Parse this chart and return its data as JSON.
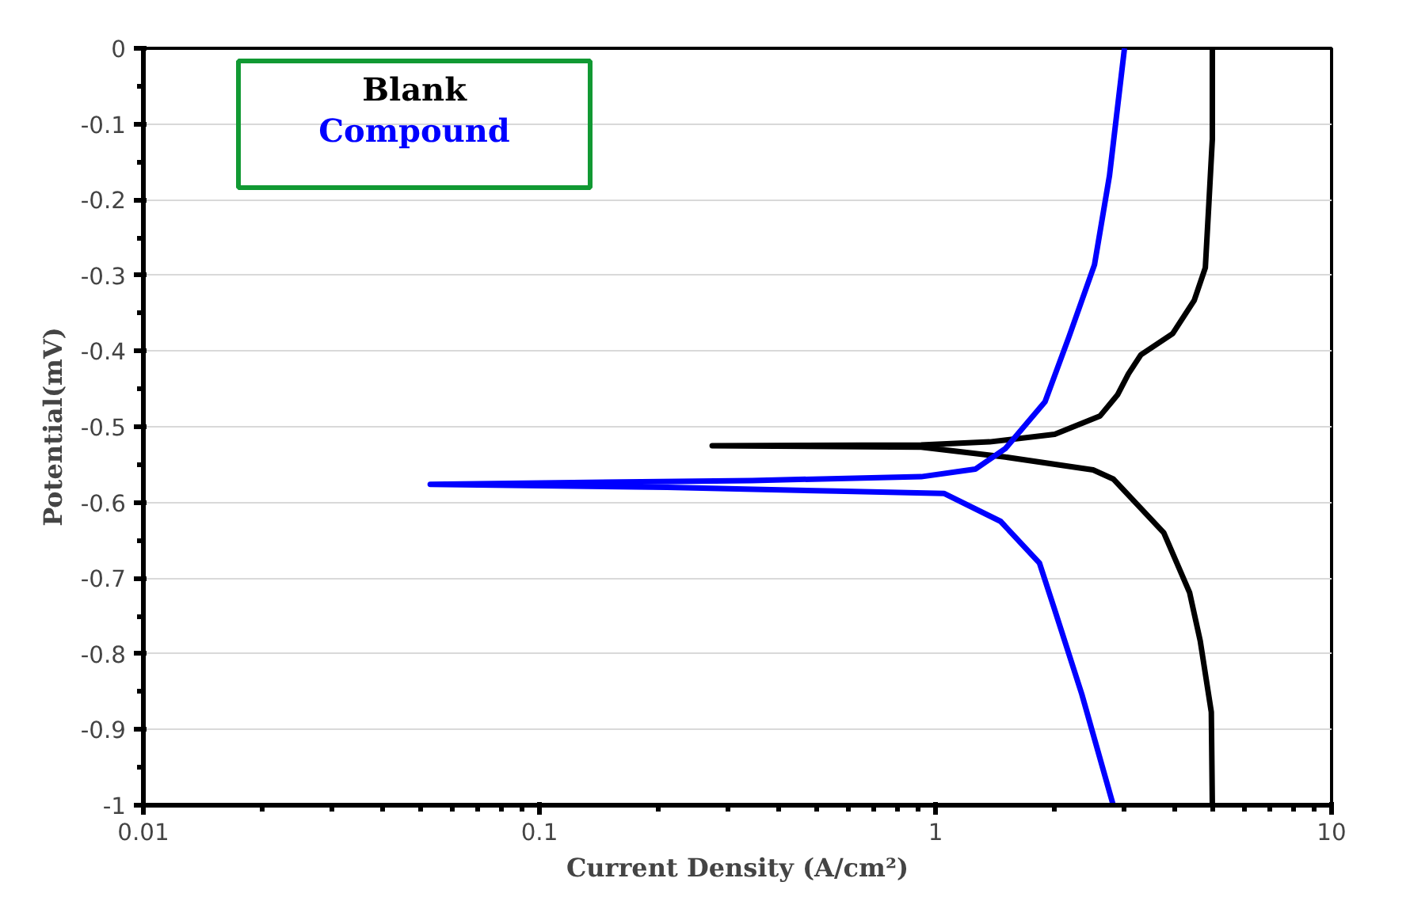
{
  "chart_data": {
    "type": "line",
    "xlabel": "Current Density (A/cm²)",
    "ylabel": "Potential(mV)",
    "log": "x",
    "xlim": [
      0.01,
      10
    ],
    "xticks": [
      0.01,
      0.1,
      1,
      10
    ],
    "ylim": [
      -1,
      0
    ],
    "yticks": [
      0,
      -0.1,
      -0.2,
      -0.3,
      -0.4,
      -0.5,
      -0.6,
      -0.7,
      -0.8,
      -0.9,
      -1
    ],
    "grid": "y",
    "legend": "top left",
    "line_style": "solid",
    "marker": "none",
    "series": [
      {
        "name": "Blank",
        "color": "#000000",
        "x": [
          5.0,
          5.0,
          4.9,
          4.8,
          4.5,
          3.97,
          3.3,
          3.07,
          2.88,
          2.6,
          2.0,
          1.37,
          0.92,
          0.273,
          0.92,
          1.5,
          2.5,
          2.81,
          3.77,
          4.38,
          4.66,
          4.97,
          5.0
        ],
        "values": [
          0,
          -0.12,
          -0.205,
          -0.29,
          -0.333,
          -0.377,
          -0.405,
          -0.43,
          -0.458,
          -0.486,
          -0.51,
          -0.52,
          -0.524,
          -0.525,
          -0.527,
          -0.54,
          -0.557,
          -0.569,
          -0.64,
          -0.719,
          -0.783,
          -0.877,
          -1
        ]
      },
      {
        "name": "Compound",
        "color": "#0000ff",
        "x": [
          3.0,
          2.75,
          2.52,
          2.17,
          1.89,
          1.5,
          1.26,
          0.92,
          0.344,
          0.053,
          0.21,
          0.56,
          1.05,
          1.46,
          1.83,
          2.0,
          2.34,
          2.81
        ],
        "values": [
          0,
          -0.168,
          -0.286,
          -0.382,
          -0.467,
          -0.529,
          -0.556,
          -0.566,
          -0.571,
          -0.576,
          -0.58,
          -0.585,
          -0.588,
          -0.625,
          -0.68,
          -0.742,
          -0.853,
          -1
        ]
      }
    ]
  }
}
